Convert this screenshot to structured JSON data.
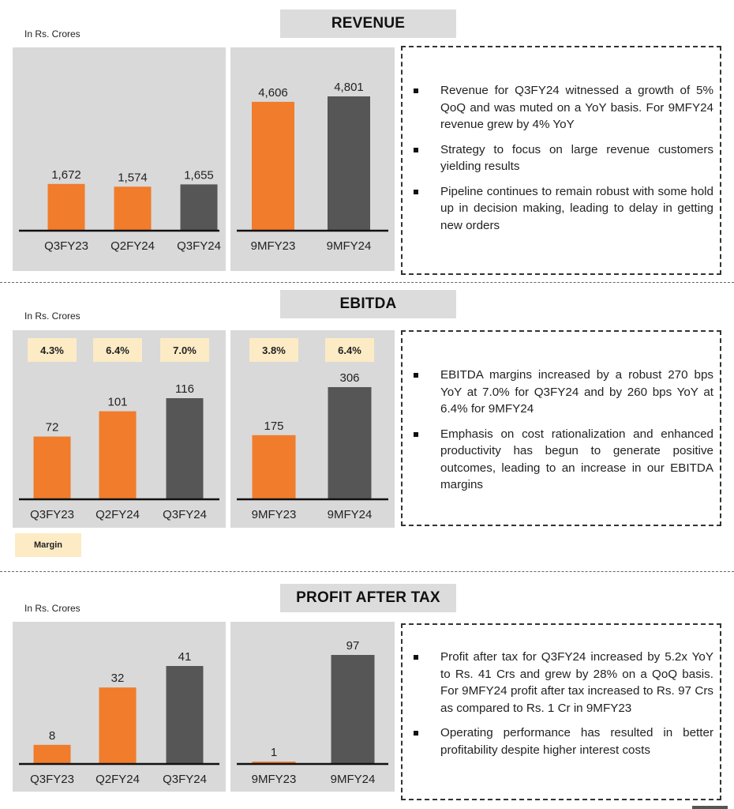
{
  "colors": {
    "orange": "#f07c2c",
    "gray": "#565656",
    "panel": "#d9d9d9",
    "margin_box": "#fcebc5"
  },
  "sections": [
    {
      "title": "REVENUE",
      "units": "In Rs. Crores",
      "bullets": [
        "Revenue for Q3FY24 witnessed a growth of 5% QoQ and was muted on a YoY basis. For 9MFY24 revenue grew by 4% YoY",
        "Strategy to focus on large revenue customers yielding results",
        "Pipeline continues to remain robust with some hold up in decision making, leading to delay in getting new orders"
      ]
    },
    {
      "title": "EBITDA",
      "units": "In Rs. Crores",
      "margin_legend": "Margin",
      "bullets": [
        "EBITDA margins increased by a robust 270 bps YoY at 7.0% for Q3FY24 and by 260 bps YoY at 6.4% for 9MFY24",
        "Emphasis on cost rationalization and enhanced productivity has begun to generate positive outcomes, leading to an increase in our EBITDA margins"
      ]
    },
    {
      "title": "PROFIT AFTER TAX",
      "units": "In Rs. Crores",
      "bullets": [
        "Profit after tax for Q3FY24 increased by 5.2x YoY to Rs. 41 Crs and grew by 28% on a QoQ basis. For 9MFY24 profit after tax increased to Rs. 97 Crs as compared to Rs. 1 Cr in 9MFY23",
        "Operating performance has resulted in better profitability despite higher interest costs"
      ]
    }
  ],
  "chart_data": [
    {
      "type": "bar",
      "title": "REVENUE",
      "ylabel": "In Rs. Crores",
      "categories": [
        "Q3FY23",
        "Q2FY24",
        "Q3FY24"
      ],
      "values": [
        1672,
        1574,
        1655
      ],
      "labels": [
        "1,672",
        "1,574",
        "1,655"
      ],
      "colors": [
        "orange",
        "orange",
        "gray"
      ],
      "ymax": 4801
    },
    {
      "type": "bar",
      "title": "REVENUE",
      "ylabel": "In Rs. Crores",
      "categories": [
        "9MFY23",
        "9MFY24"
      ],
      "values": [
        4606,
        4801
      ],
      "labels": [
        "4,606",
        "4,801"
      ],
      "colors": [
        "orange",
        "gray"
      ],
      "ymax": 4801
    },
    {
      "type": "bar",
      "title": "EBITDA",
      "ylabel": "In Rs. Crores",
      "categories": [
        "Q3FY23",
        "Q2FY24",
        "Q3FY24"
      ],
      "values": [
        72,
        101,
        116
      ],
      "labels": [
        "72",
        "101",
        "116"
      ],
      "colors": [
        "orange",
        "orange",
        "gray"
      ],
      "margins": [
        "4.3%",
        "6.4%",
        "7.0%"
      ],
      "ymax": 116
    },
    {
      "type": "bar",
      "title": "EBITDA",
      "ylabel": "In Rs. Crores",
      "categories": [
        "9MFY23",
        "9MFY24"
      ],
      "values": [
        175,
        306
      ],
      "labels": [
        "175",
        "306"
      ],
      "colors": [
        "orange",
        "gray"
      ],
      "margins": [
        "3.8%",
        "6.4%"
      ],
      "ymax": 306
    },
    {
      "type": "bar",
      "title": "PROFIT AFTER TAX",
      "ylabel": "In Rs. Crores",
      "categories": [
        "Q3FY23",
        "Q2FY24",
        "Q3FY24"
      ],
      "values": [
        8,
        32,
        41
      ],
      "labels": [
        "8",
        "32",
        "41"
      ],
      "colors": [
        "orange",
        "orange",
        "gray"
      ],
      "ymax": 41
    },
    {
      "type": "bar",
      "title": "PROFIT AFTER TAX",
      "ylabel": "In Rs. Crores",
      "categories": [
        "9MFY23",
        "9MFY24"
      ],
      "values": [
        1,
        97
      ],
      "labels": [
        "1",
        "97"
      ],
      "colors": [
        "orange",
        "gray"
      ],
      "ymax": 97
    }
  ]
}
